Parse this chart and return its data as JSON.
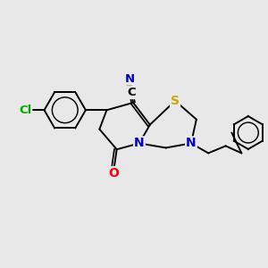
{
  "background_color": "#e8e8e8",
  "bond_color": "#000000",
  "atom_colors": {
    "N": "#0000cc",
    "S": "#ccaa00",
    "O": "#ff0000",
    "Cl": "#00aa00",
    "C": "#000000"
  },
  "bond_lw": 1.4,
  "figsize": [
    3.0,
    3.0
  ],
  "dpi": 100
}
